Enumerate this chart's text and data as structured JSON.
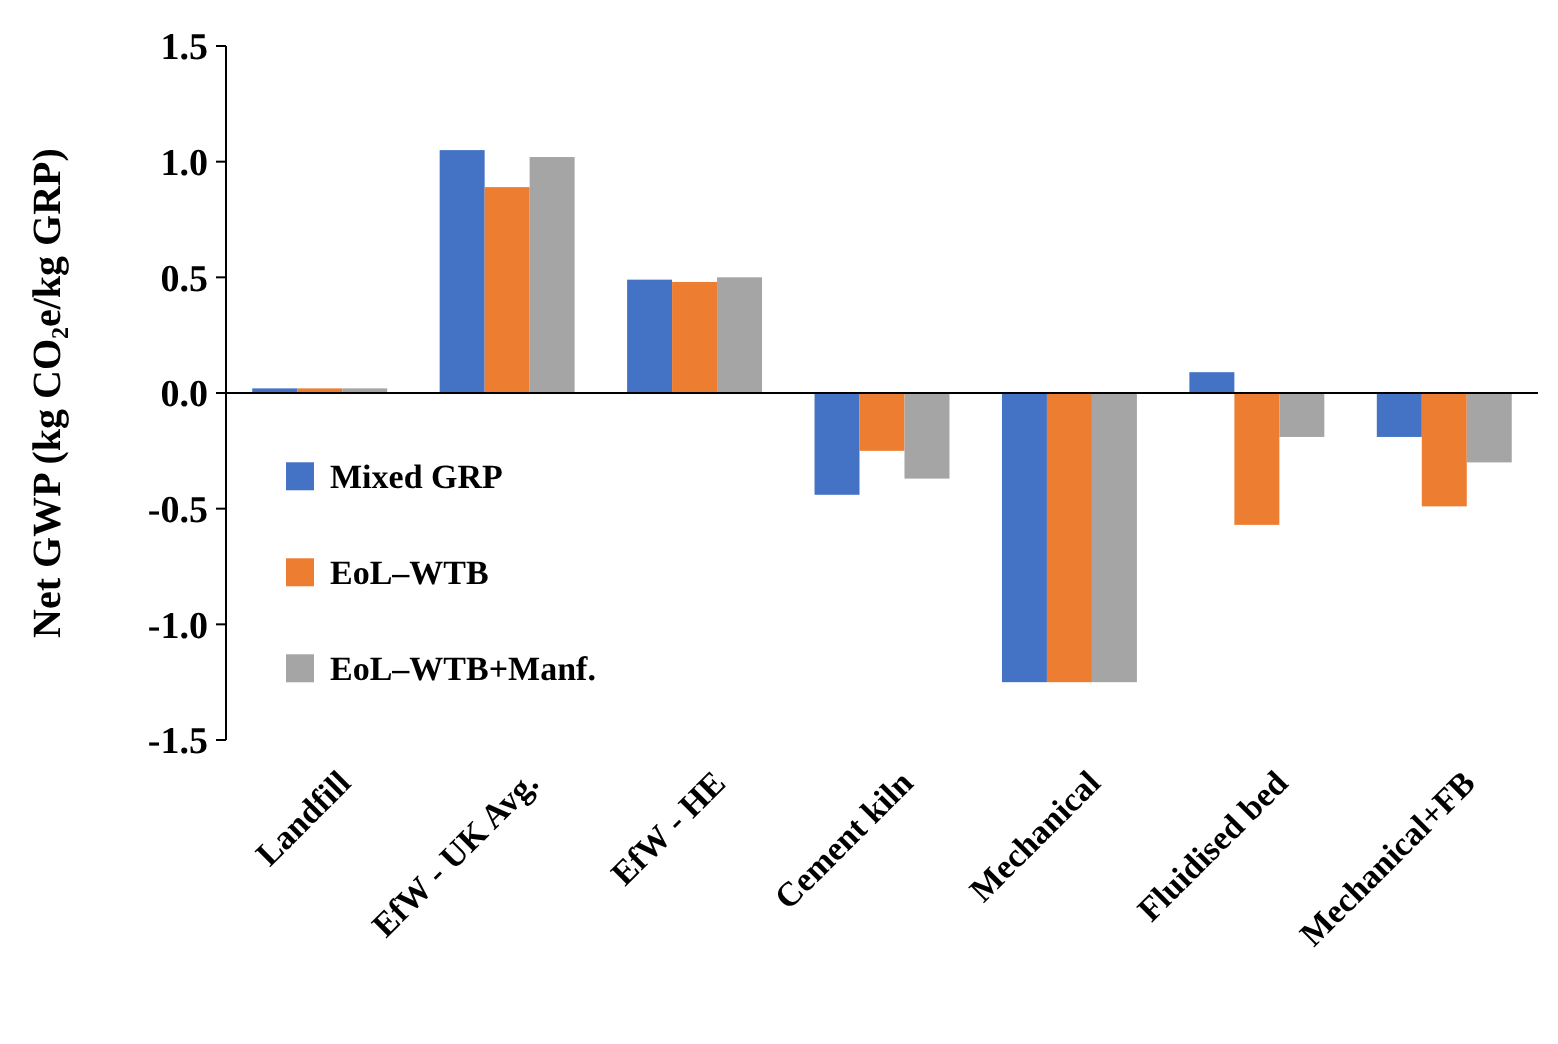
{
  "chart_data": {
    "type": "bar",
    "ylabel": "Net GWP (kg CO₂e/kg GRP)",
    "categories": [
      "Landfill",
      "EfW - UK Avg.",
      "EfW - HE",
      "Cement kiln",
      "Mechanical",
      "Fluidised bed",
      "Mechanical+FB"
    ],
    "series": [
      {
        "name": "Mixed GRP",
        "color": "#4472c4",
        "values": [
          0.02,
          1.05,
          0.49,
          -0.44,
          -1.25,
          0.09,
          -0.19
        ]
      },
      {
        "name": "EoL–WTB",
        "color": "#ed7d31",
        "values": [
          0.02,
          0.89,
          0.48,
          -0.25,
          -1.25,
          -0.57,
          -0.49
        ]
      },
      {
        "name": "EoL–WTB+Manf.",
        "color": "#a5a5a5",
        "values": [
          0.02,
          1.02,
          0.5,
          -0.37,
          -1.25,
          -0.19,
          -0.3
        ]
      }
    ],
    "ylim": [
      -1.5,
      1.5
    ],
    "yticks": [
      {
        "value": -1.5,
        "label": "-1.5"
      },
      {
        "value": -1,
        "label": "-1.0"
      },
      {
        "value": -0.5,
        "label": "-0.5"
      },
      {
        "value": 0,
        "label": "0.0"
      },
      {
        "value": 0.5,
        "label": "0.5"
      },
      {
        "value": 1,
        "label": "1.0"
      },
      {
        "value": 1.5,
        "label": "1.5"
      }
    ],
    "legend": "left"
  }
}
